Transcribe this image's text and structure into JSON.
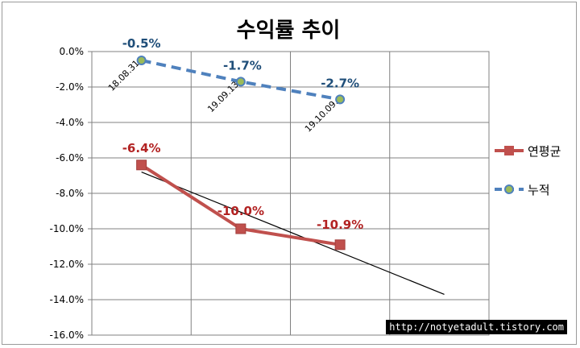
{
  "chart_data": {
    "type": "line",
    "title": "수익률 추이",
    "ylim": [
      -0.16,
      0.0
    ],
    "ytick_step": 0.02,
    "y_tick_labels": [
      "0.0%",
      "-2.0%",
      "-4.0%",
      "-6.0%",
      "-8.0%",
      "-10.0%",
      "-12.0%",
      "-14.0%",
      "-16.0%"
    ],
    "grid": true,
    "legend_position": "right",
    "categories": [
      "18.08.31",
      "19.09.13",
      "19.10.09."
    ],
    "series": [
      {
        "name": "누적",
        "values": [
          -0.005,
          -0.017,
          -0.027
        ],
        "data_labels": [
          "-0.5%",
          "-1.7%",
          "-2.7%"
        ],
        "color": "#4f81bd",
        "label_color": "#1f4e79",
        "marker_fill": "#9bbb59",
        "style": "dashed"
      },
      {
        "name": "연평균",
        "values": [
          -0.064,
          -0.1,
          -0.109
        ],
        "data_labels": [
          "-6.4%",
          "-10.0%",
          "-10.9%"
        ],
        "color": "#c0504d",
        "label_color": "#b22222",
        "marker": "square",
        "style": "solid"
      }
    ],
    "trendline": {
      "color": "#000000",
      "x": [
        1,
        4.05
      ],
      "y": [
        -0.068,
        -0.137
      ]
    }
  },
  "watermark": "http://notyetadult.tistory.com"
}
